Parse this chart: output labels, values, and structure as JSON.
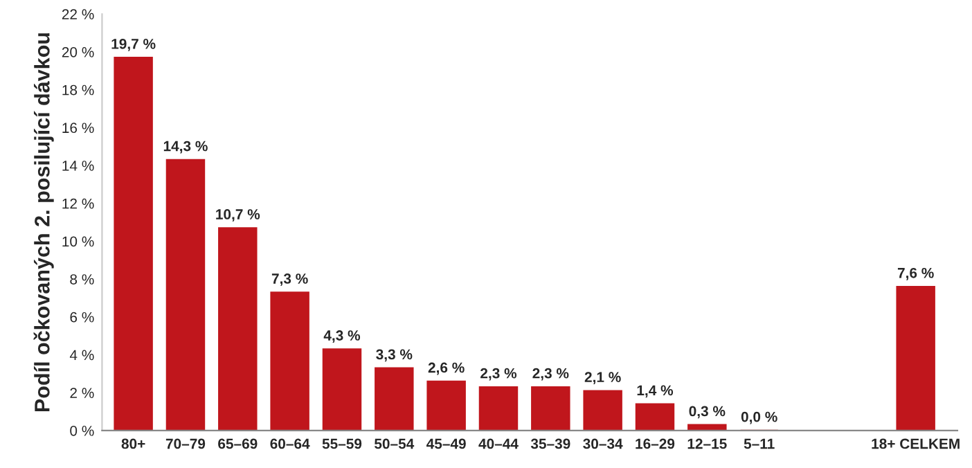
{
  "chart_data": {
    "type": "bar",
    "ylabel": "Podíl očkovaných 2. posilující dávkou",
    "categories": [
      "80+",
      "70–79",
      "65–69",
      "60–64",
      "55–59",
      "50–54",
      "45–49",
      "40–44",
      "35–39",
      "30–34",
      "16–29",
      "12–15",
      "5–11",
      null,
      null,
      "18+ CELKEM"
    ],
    "values": [
      19.7,
      14.3,
      10.7,
      7.3,
      4.3,
      3.3,
      2.6,
      2.3,
      2.3,
      2.1,
      1.4,
      0.3,
      0.0,
      null,
      null,
      7.6
    ],
    "value_labels": [
      "19,7 %",
      "14,3 %",
      "10,7 %",
      "7,3 %",
      "4,3 %",
      "3,3 %",
      "2,6 %",
      "2,3 %",
      "2,3 %",
      "2,1 %",
      "1,4 %",
      "0,3 %",
      "0,0 %",
      null,
      null,
      "7,6 %"
    ],
    "color": "#c0161c",
    "ylim": [
      0,
      22
    ],
    "yticks": [
      {
        "value": 0,
        "label": "0 %"
      },
      {
        "value": 2,
        "label": "2 %"
      },
      {
        "value": 4,
        "label": "4 %"
      },
      {
        "value": 6,
        "label": "6 %"
      },
      {
        "value": 8,
        "label": "8 %"
      },
      {
        "value": 10,
        "label": "10 %"
      },
      {
        "value": 12,
        "label": "12 %"
      },
      {
        "value": 14,
        "label": "14 %"
      },
      {
        "value": 16,
        "label": "16 %"
      },
      {
        "value": 18,
        "label": "18 %"
      },
      {
        "value": 20,
        "label": "20 %"
      },
      {
        "value": 22,
        "label": "22 %"
      }
    ],
    "grid": false,
    "legend": false
  }
}
